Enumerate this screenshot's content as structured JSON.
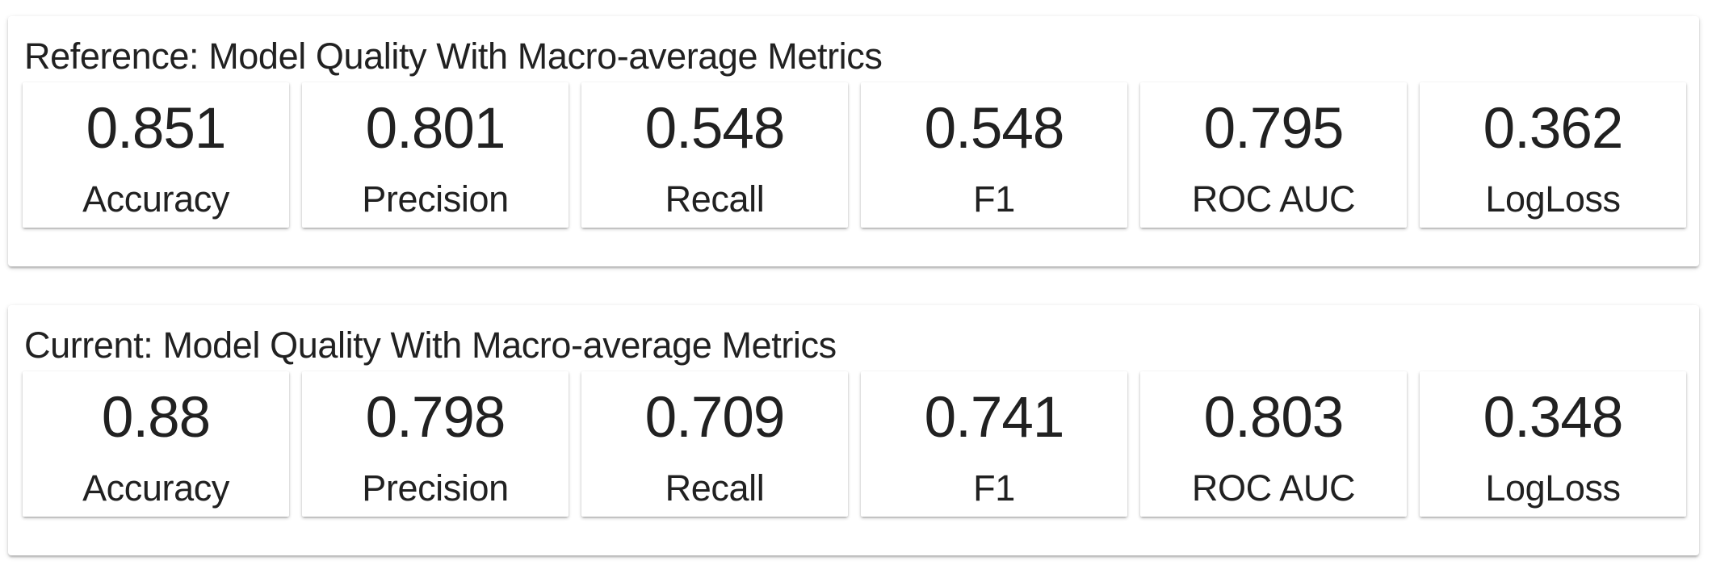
{
  "reference": {
    "title": "Reference: Model Quality With Macro-average Metrics",
    "metrics": [
      {
        "value": "0.851",
        "label": "Accuracy"
      },
      {
        "value": "0.801",
        "label": "Precision"
      },
      {
        "value": "0.548",
        "label": "Recall"
      },
      {
        "value": "0.548",
        "label": "F1"
      },
      {
        "value": "0.795",
        "label": "ROC AUC"
      },
      {
        "value": "0.362",
        "label": "LogLoss"
      }
    ]
  },
  "current": {
    "title": "Current: Model Quality With Macro-average Metrics",
    "metrics": [
      {
        "value": "0.88",
        "label": "Accuracy"
      },
      {
        "value": "0.798",
        "label": "Precision"
      },
      {
        "value": "0.709",
        "label": "Recall"
      },
      {
        "value": "0.741",
        "label": "F1"
      },
      {
        "value": "0.803",
        "label": "ROC AUC"
      },
      {
        "value": "0.348",
        "label": "LogLoss"
      }
    ]
  },
  "colors": {
    "text": "#212121",
    "card_background": "#ffffff",
    "page_background": "#ffffff"
  }
}
